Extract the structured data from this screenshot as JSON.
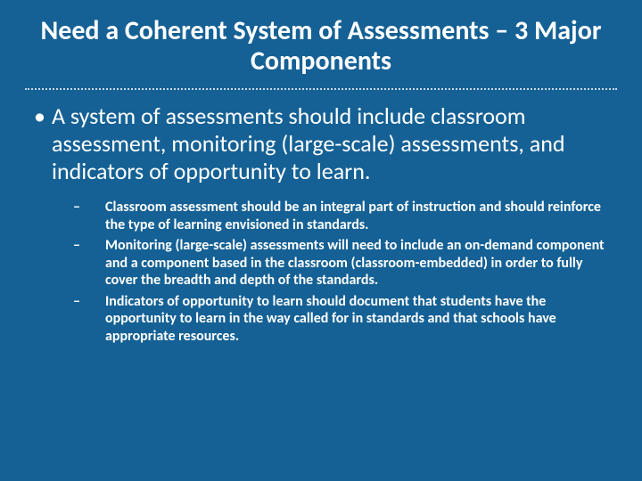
{
  "slide": {
    "title": "Need a Coherent System of Assessments – 3 Major Components",
    "title_fontsize": 30,
    "title_fontweight": 700,
    "title_color": "#ffffff",
    "background_color": "#156195",
    "divider_color": "#c9d9e6",
    "bullet": {
      "text": "A system of assessments should include classroom assessment, monitoring (large-scale) assessments, and indicators of opportunity to learn.",
      "fontsize": 26,
      "color": "#ffffff",
      "marker": "•"
    },
    "subbullets": {
      "fontsize": 16,
      "fontweight": 700,
      "color": "#ffffff",
      "marker": "–",
      "items": [
        "Classroom assessment should be an integral part of instruction and should reinforce the type of learning envisioned in standards.",
        "Monitoring (large-scale) assessments will need to include an on-demand component and a component based in the classroom (classroom-embedded) in order to fully cover the breadth and depth of the standards.",
        "Indicators of opportunity to learn should document that students have the opportunity to learn in the way called for in standards and that schools have appropriate resources."
      ]
    }
  }
}
